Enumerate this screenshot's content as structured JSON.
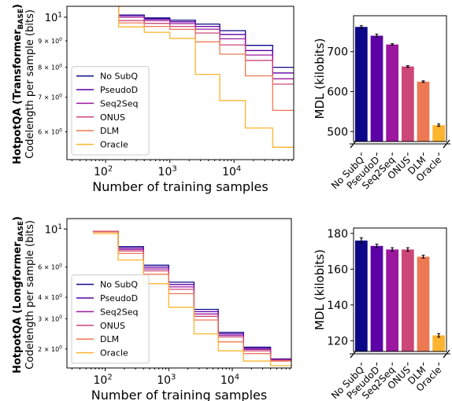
{
  "row_labels": [
    {
      "bold": "HotpotQA (Transformer",
      "sub": "BASE",
      "close": ")",
      "line2": "Codelength per sample (bits)"
    },
    {
      "bold": "HotpotQA (Longformer",
      "sub": "BASE",
      "close": ")",
      "line2": "Codelength per sample (bits)"
    }
  ],
  "colors": {
    "No SubQ": "#0d0887",
    "PseudoD": "#5c01a6",
    "Seq2Seq": "#9c179e",
    "ONUS": "#cc4778",
    "DLM": "#ed7953",
    "Oracle": "#fdb42f"
  },
  "chart_data": [
    {
      "type": "line",
      "xscale": "log",
      "yscale": "log",
      "xlabel": "Number of training samples",
      "ylabel": "",
      "xtick_labels": [
        {
          "base": "10",
          "exp": "2",
          "value": 100
        },
        {
          "base": "10",
          "exp": "3",
          "value": 1000
        },
        {
          "base": "10",
          "exp": "4",
          "value": 10000
        }
      ],
      "ytick_labels": [
        {
          "text": "10",
          "sup": "1",
          "value": 10,
          "major": true
        },
        {
          "text": "9 × 10",
          "sup": "0",
          "value": 9,
          "major": false
        },
        {
          "text": "8 × 10",
          "sup": "0",
          "value": 8,
          "major": false
        },
        {
          "text": "7 × 10",
          "sup": "0",
          "value": 7,
          "major": false
        },
        {
          "text": "6 × 10",
          "sup": "0",
          "value": 6,
          "major": false
        }
      ],
      "xlim": [
        25,
        85000
      ],
      "ylim": [
        5.3,
        10.5
      ],
      "legend": "lower-left",
      "x_edges": [
        64,
        160,
        400,
        1000,
        2500,
        6000,
        15000,
        40000,
        85000
      ],
      "series": [
        {
          "name": "No SubQ",
          "values": [
            11.5,
            10.1,
            9.97,
            9.87,
            9.7,
            9.42,
            8.82,
            8.0
          ]
        },
        {
          "name": "PseudoD",
          "values": [
            11.5,
            10.07,
            9.92,
            9.8,
            9.6,
            9.26,
            8.62,
            7.8
          ]
        },
        {
          "name": "Seq2Seq",
          "values": [
            11.5,
            10.0,
            9.85,
            9.72,
            9.48,
            9.08,
            8.45,
            7.6
          ]
        },
        {
          "name": "ONUS",
          "values": [
            11.5,
            9.85,
            9.73,
            9.6,
            9.32,
            8.84,
            8.25,
            7.42
          ]
        },
        {
          "name": "DLM",
          "values": [
            11.5,
            9.75,
            9.6,
            9.47,
            8.96,
            8.48,
            7.7,
            6.6
          ]
        },
        {
          "name": "Oracle",
          "values": [
            11.5,
            9.58,
            9.35,
            9.1,
            7.75,
            6.9,
            6.1,
            5.6
          ]
        }
      ]
    },
    {
      "type": "bar",
      "ylabel": "MDL (kilobits)",
      "categories": [
        "No SubQ",
        "PseudoD",
        "Seq2Seq",
        "ONUS",
        "DLM",
        "Oracle"
      ],
      "values": [
        762,
        740,
        718,
        663,
        625,
        516
      ],
      "errors": [
        3,
        4,
        2,
        2,
        2,
        3
      ],
      "yticks": [
        500,
        600,
        700
      ],
      "ylim": [
        475,
        790
      ],
      "axis_break": true
    },
    {
      "type": "line",
      "xscale": "log",
      "yscale": "log",
      "xlabel": "Number of training samples",
      "ylabel": "",
      "xtick_labels": [
        {
          "base": "10",
          "exp": "2",
          "value": 100
        },
        {
          "base": "10",
          "exp": "3",
          "value": 1000
        },
        {
          "base": "10",
          "exp": "4",
          "value": 10000
        }
      ],
      "ytick_labels": [
        {
          "text": "10",
          "sup": "1",
          "value": 10,
          "major": true
        },
        {
          "text": "6 × 10",
          "sup": "0",
          "value": 6,
          "major": false
        },
        {
          "text": "4 × 10",
          "sup": "0",
          "value": 4,
          "major": false
        },
        {
          "text": "3 × 10",
          "sup": "0",
          "value": 3,
          "major": false
        },
        {
          "text": "2 × 10",
          "sup": "0",
          "value": 2,
          "major": false
        }
      ],
      "xlim": [
        25,
        85000
      ],
      "ylim": [
        1.55,
        11.5
      ],
      "legend": "lower-left",
      "x_edges": [
        64,
        160,
        400,
        1000,
        2500,
        6000,
        15000,
        40000,
        85000
      ],
      "series": [
        {
          "name": "No SubQ",
          "values": [
            9.7,
            7.9,
            6.15,
            4.9,
            3.4,
            2.5,
            2.05,
            1.75
          ]
        },
        {
          "name": "PseudoD",
          "values": [
            9.7,
            7.75,
            6.0,
            4.75,
            3.3,
            2.45,
            2.02,
            1.74
          ]
        },
        {
          "name": "Seq2Seq",
          "values": [
            9.7,
            7.6,
            5.85,
            4.6,
            3.2,
            2.4,
            1.99,
            1.73
          ]
        },
        {
          "name": "ONUS",
          "values": [
            9.7,
            7.45,
            5.7,
            4.45,
            3.1,
            2.35,
            1.95,
            1.72
          ]
        },
        {
          "name": "DLM",
          "values": [
            9.6,
            7.2,
            5.45,
            4.2,
            2.95,
            2.2,
            1.88,
            1.7
          ]
        },
        {
          "name": "Oracle",
          "values": [
            9.4,
            6.6,
            4.8,
            3.5,
            2.45,
            1.95,
            1.7,
            1.6
          ]
        }
      ]
    },
    {
      "type": "bar",
      "ylabel": "MDL (kilobits)",
      "categories": [
        "No SubQ",
        "PseudoD",
        "Seq2Seq",
        "ONUS",
        "DLM",
        "Oracle"
      ],
      "values": [
        176,
        173,
        171,
        171,
        167,
        123
      ],
      "errors": [
        1.5,
        1.0,
        1.0,
        1.0,
        0.8,
        1.0
      ],
      "yticks": [
        120,
        140,
        160,
        180
      ],
      "ylim": [
        114,
        183
      ],
      "axis_break": true
    }
  ]
}
